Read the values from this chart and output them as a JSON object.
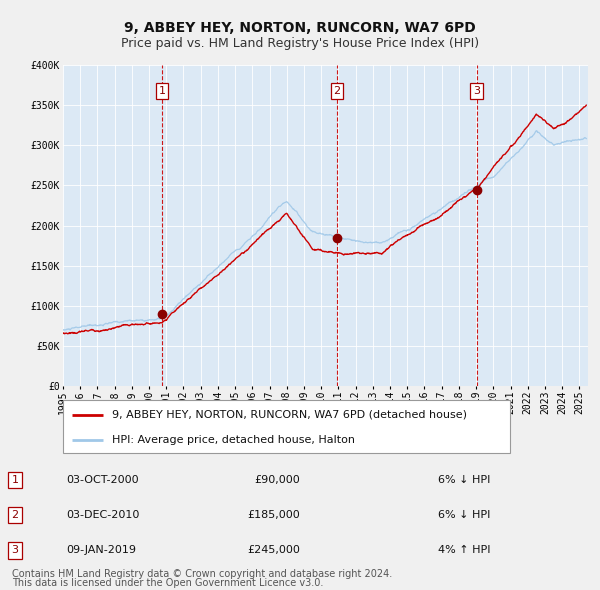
{
  "title": "9, ABBEY HEY, NORTON, RUNCORN, WA7 6PD",
  "subtitle": "Price paid vs. HM Land Registry's House Price Index (HPI)",
  "fig_bg_color": "#f0f0f0",
  "plot_bg_color": "#dce9f5",
  "hpi_line_color": "#a0c8e8",
  "price_line_color": "#cc0000",
  "sale_marker_color": "#8b0000",
  "vline_color": "#cc0000",
  "ylim": [
    0,
    400000
  ],
  "yticks": [
    0,
    50000,
    100000,
    150000,
    200000,
    250000,
    300000,
    350000,
    400000
  ],
  "ytick_labels": [
    "£0",
    "£50K",
    "£100K",
    "£150K",
    "£200K",
    "£250K",
    "£300K",
    "£350K",
    "£400K"
  ],
  "xlim_start": 1995.0,
  "xlim_end": 2025.5,
  "sale_dates_decimal": [
    2000.75,
    2010.92,
    2019.03
  ],
  "sale_prices": [
    90000,
    185000,
    245000
  ],
  "sale_labels": [
    "1",
    "2",
    "3"
  ],
  "table_rows": [
    [
      "1",
      "03-OCT-2000",
      "£90,000",
      "6% ↓ HPI"
    ],
    [
      "2",
      "03-DEC-2010",
      "£185,000",
      "6% ↓ HPI"
    ],
    [
      "3",
      "09-JAN-2019",
      "£245,000",
      "4% ↑ HPI"
    ]
  ],
  "legend_entries": [
    "9, ABBEY HEY, NORTON, RUNCORN, WA7 6PD (detached house)",
    "HPI: Average price, detached house, Halton"
  ],
  "footer_line1": "Contains HM Land Registry data © Crown copyright and database right 2024.",
  "footer_line2": "This data is licensed under the Open Government Licence v3.0.",
  "title_fontsize": 10,
  "subtitle_fontsize": 9,
  "tick_fontsize": 7,
  "legend_fontsize": 8,
  "table_fontsize": 8,
  "footer_fontsize": 7
}
